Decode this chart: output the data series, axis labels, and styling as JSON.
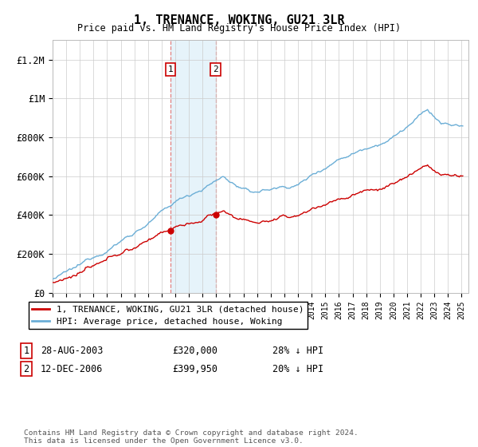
{
  "title": "1, TRENANCE, WOKING, GU21 3LR",
  "subtitle": "Price paid vs. HM Land Registry's House Price Index (HPI)",
  "hpi_color": "#6baed6",
  "price_color": "#cc0000",
  "vline_color": "#e08080",
  "shade_color": "#dceef8",
  "sale1_date": 2003.66,
  "sale1_price": 320000,
  "sale1_text": "28-AUG-2003",
  "sale1_price_text": "£320,000",
  "sale1_hpi_text": "28% ↓ HPI",
  "sale2_date": 2006.95,
  "sale2_price": 399950,
  "sale2_text": "12-DEC-2006",
  "sale2_price_text": "£399,950",
  "sale2_hpi_text": "20% ↓ HPI",
  "ylabel_ticks": [
    0,
    200000,
    400000,
    600000,
    800000,
    1000000,
    1200000
  ],
  "ylabel_labels": [
    "£0",
    "£200K",
    "£400K",
    "£600K",
    "£800K",
    "£1M",
    "£1.2M"
  ],
  "xmin": 1995.0,
  "xmax": 2025.5,
  "ymin": 0,
  "ymax": 1300000,
  "legend_line1": "1, TRENANCE, WOKING, GU21 3LR (detached house)",
  "legend_line2": "HPI: Average price, detached house, Woking",
  "footnote": "Contains HM Land Registry data © Crown copyright and database right 2024.\nThis data is licensed under the Open Government Licence v3.0."
}
